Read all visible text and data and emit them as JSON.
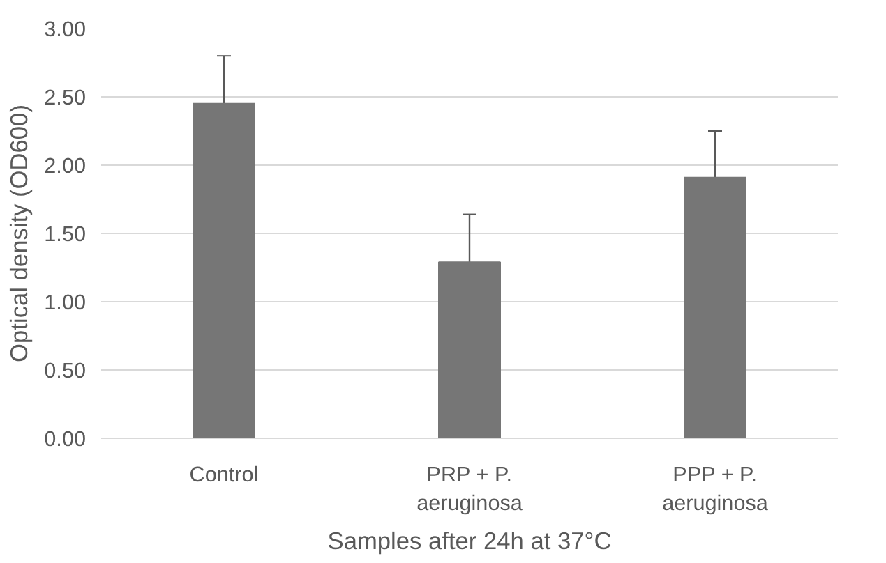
{
  "chart_data": {
    "type": "bar",
    "xlabel": "Samples after 24h at 37°C",
    "ylabel": "Optical density (OD600)",
    "categories": [
      "Control",
      "PRP + P. aeruginosa",
      "PPP + P. aeruginosa"
    ],
    "values": [
      2.45,
      1.29,
      1.91
    ],
    "errors": [
      0.35,
      0.35,
      0.34
    ],
    "color": "#767676",
    "ylim": [
      0,
      3
    ],
    "yticks": [
      {
        "value": 0,
        "label": "0.00"
      },
      {
        "value": 0.5,
        "label": "0.50"
      },
      {
        "value": 1,
        "label": "1.00"
      },
      {
        "value": 1.5,
        "label": "1.50"
      },
      {
        "value": 2,
        "label": "2.00"
      },
      {
        "value": 2.5,
        "label": "2.50"
      },
      {
        "value": 3,
        "label": "3.00"
      }
    ],
    "grid": "y"
  }
}
